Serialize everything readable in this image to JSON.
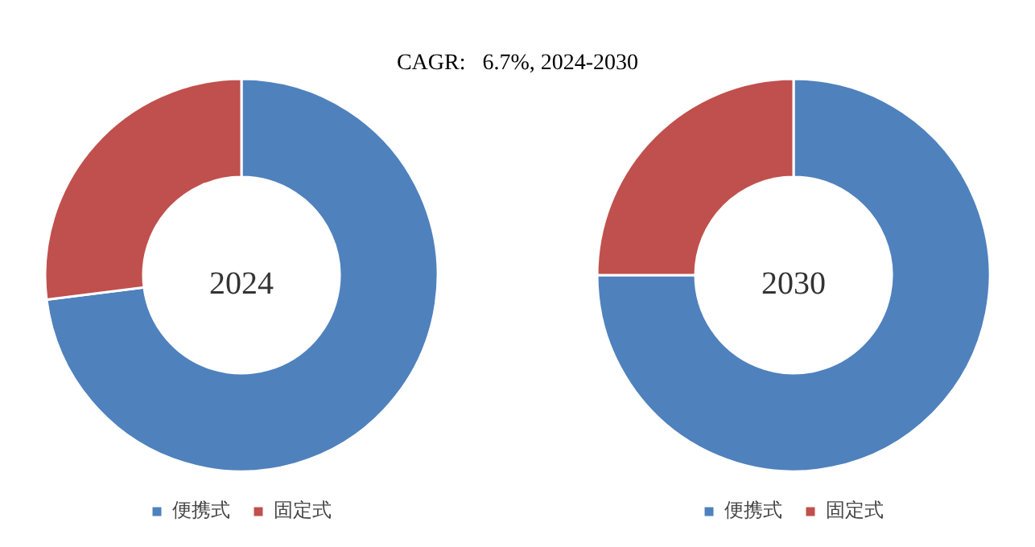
{
  "chart_data": [
    {
      "type": "donut",
      "title": "2024",
      "annotations": [
        "CAGR:   6.7%, 2024-2030"
      ],
      "categories": [
        "便携式",
        "固定式"
      ],
      "values": [
        73,
        27
      ],
      "colors": [
        "#4f81bd",
        "#c0504d"
      ],
      "legend": "bottom"
    },
    {
      "type": "donut",
      "title": "2030",
      "categories": [
        "便携式",
        "固定式"
      ],
      "values": [
        75,
        25
      ],
      "colors": [
        "#4f81bd",
        "#c0504d"
      ],
      "legend": "bottom"
    }
  ]
}
